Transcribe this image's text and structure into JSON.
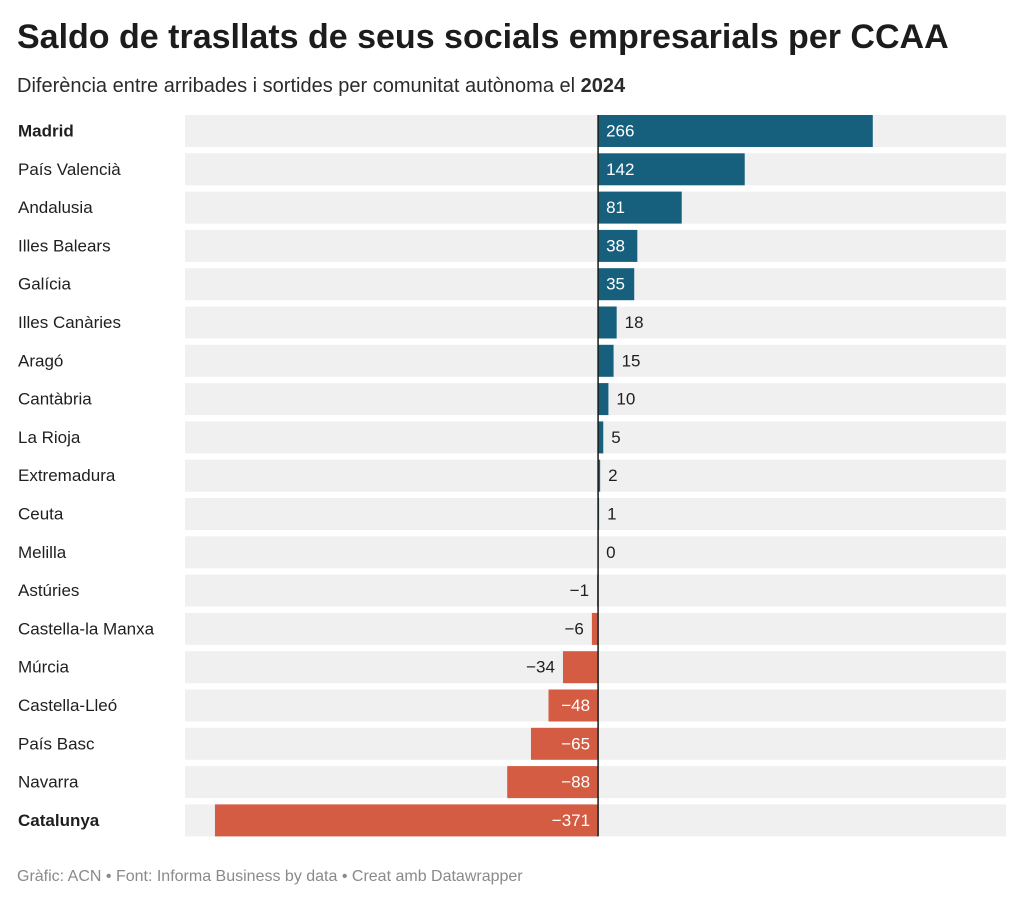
{
  "title": "Saldo de trasllats de seus socials empresarials per CCAA",
  "subtitle_prefix": "Diferència entre arribades i sortides per comunitat autònoma el ",
  "subtitle_year": "2024",
  "footer": "Gràfic: ACN • Font: Informa Business by data  • Creat amb Datawrapper",
  "colors": {
    "positive": "#17607d",
    "negative": "#d45c42",
    "row_background": "#f0f0f0",
    "zero_line": "#1a1a1a",
    "label_text": "#1f1f1f",
    "inside_value_text": "#ffffff"
  },
  "chart_data": {
    "type": "bar",
    "orientation": "horizontal",
    "categories": [
      "Madrid",
      "País Valencià",
      "Andalusia",
      "Illes Balears",
      "Galícia",
      "Illes Canàries",
      "Aragó",
      "Cantàbria",
      "La Rioja",
      "Extremadura",
      "Ceuta",
      "Melilla",
      "Astúries",
      "Castella-la Manxa",
      "Múrcia",
      "Castella-Lleó",
      "País Basc",
      "Navarra",
      "Catalunya"
    ],
    "values": [
      266,
      142,
      81,
      38,
      35,
      18,
      15,
      10,
      5,
      2,
      1,
      0,
      -1,
      -6,
      -34,
      -48,
      -65,
      -88,
      -371
    ],
    "value_labels": [
      "266",
      "142",
      "81",
      "38",
      "35",
      "18",
      "15",
      "10",
      "5",
      "2",
      "1",
      "0",
      "−1",
      "−6",
      "−34",
      "−48",
      "−65",
      "−88",
      "−371"
    ],
    "bold_categories": [
      "Madrid",
      "Catalunya"
    ],
    "xlim": [
      -400,
      395
    ],
    "grid": false,
    "legend": "none"
  }
}
